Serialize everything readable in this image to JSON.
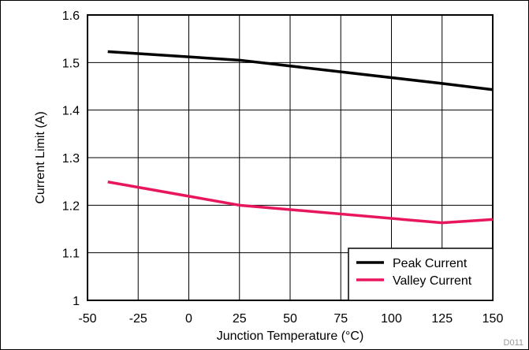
{
  "chart_data": {
    "type": "line",
    "xlabel": "Junction Temperature (°C)",
    "ylabel": "Current Limit (A)",
    "xlim": [
      -50,
      150
    ],
    "ylim": [
      1,
      1.6
    ],
    "xticks": [
      -50,
      -25,
      0,
      25,
      50,
      75,
      100,
      125,
      150
    ],
    "yticks": [
      1,
      1.1,
      1.2,
      1.3,
      1.4,
      1.5,
      1.6
    ],
    "xtick_labels": [
      "-50",
      "-25",
      "0",
      "25",
      "50",
      "75",
      "100",
      "125",
      "150"
    ],
    "ytick_labels": [
      "1",
      "1.1",
      "1.2",
      "1.3",
      "1.4",
      "1.5",
      "1.6"
    ],
    "grid": true,
    "legend_position": "bottom-right",
    "series": [
      {
        "name": "Peak Current",
        "color": "#000000",
        "x": [
          -40,
          25,
          125,
          150
        ],
        "y": [
          1.523,
          1.505,
          1.456,
          1.443
        ]
      },
      {
        "name": "Valley Current",
        "color": "#e8175d",
        "x": [
          -40,
          25,
          125,
          150
        ],
        "y": [
          1.249,
          1.2,
          1.163,
          1.17
        ]
      }
    ],
    "figure_id": "D011"
  }
}
